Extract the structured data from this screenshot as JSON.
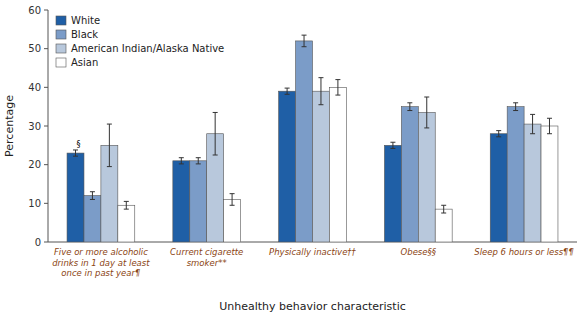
{
  "chart_data": {
    "type": "bar",
    "categories": [
      "Five or more alcoholic\ndrinks in 1 day at least\nonce in past year¶",
      "Current cigarette\nsmoker**",
      "Physically inactive††",
      "Obese§§",
      "Sleep 6 hours or less¶¶"
    ],
    "series": [
      {
        "name": "White",
        "color": "#1F5FA6",
        "values": [
          23,
          21,
          39,
          25,
          28
        ],
        "errors": [
          0.8,
          0.8,
          0.8,
          0.8,
          0.8
        ]
      },
      {
        "name": "Black",
        "color": "#7B9CC8",
        "values": [
          12,
          21,
          52,
          35,
          35
        ],
        "errors": [
          1.0,
          0.8,
          1.5,
          1.0,
          1.0
        ]
      },
      {
        "name": "American Indian/Alaska Native",
        "color": "#B8C8DC",
        "values": [
          25,
          28,
          39,
          33.5,
          30.5
        ],
        "errors": [
          5.5,
          5.5,
          3.5,
          4.0,
          2.5
        ]
      },
      {
        "name": "Asian",
        "color": "#FFFFFF",
        "values": [
          9.5,
          11,
          40,
          8.5,
          30
        ],
        "errors": [
          1.0,
          1.5,
          2.0,
          1.0,
          2.0
        ]
      }
    ],
    "annotations": [
      "§"
    ],
    "xlabel": "Unhealthy behavior characteristic",
    "ylabel": "Percentage",
    "ylim": [
      0,
      60
    ],
    "yticks": [
      0,
      10,
      20,
      30,
      40,
      50,
      60
    ],
    "grid": false,
    "legend": "upper left"
  }
}
